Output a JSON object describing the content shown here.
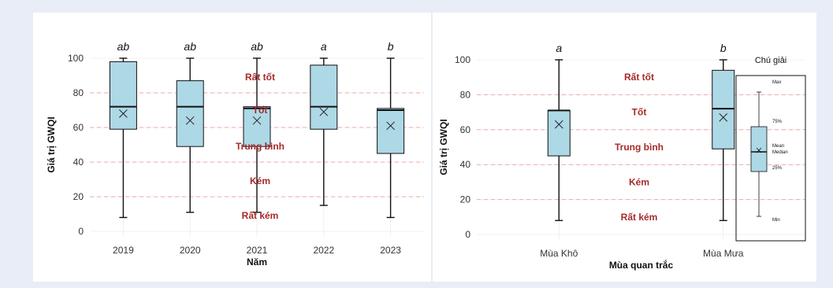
{
  "colors": {
    "box_fill": "#add8e6",
    "box_stroke": "#111111",
    "threshold_line": "#f4a6a6",
    "quality_label": "#a52a2a",
    "background": "#e9edf7",
    "panel": "#ffffff"
  },
  "chart_data": [
    {
      "type": "box",
      "xlabel": "Năm",
      "ylabel": "Giá trị GWQI",
      "ylim": [
        0,
        100
      ],
      "yticks": [
        0,
        20,
        40,
        60,
        80,
        100
      ],
      "grid": true,
      "thresholds": [
        20,
        40,
        60,
        80
      ],
      "quality_bands": [
        {
          "label": "Rất tốt",
          "value": 89
        },
        {
          "label": "Tốt",
          "value": 70
        },
        {
          "label": "Trung bình",
          "value": 49
        },
        {
          "label": "Kém",
          "value": 29
        },
        {
          "label": "Rất kém",
          "value": 9
        }
      ],
      "categories": [
        "2019",
        "2020",
        "2021",
        "2022",
        "2023"
      ],
      "boxes": [
        {
          "category": "2019",
          "min": 8,
          "q1": 59,
          "median": 72,
          "q3": 98,
          "max": 100,
          "mean": 68,
          "letter": "ab"
        },
        {
          "category": "2020",
          "min": 11,
          "q1": 49,
          "median": 72,
          "q3": 87,
          "max": 100,
          "mean": 64,
          "letter": "ab"
        },
        {
          "category": "2021",
          "min": 11,
          "q1": 49,
          "median": 71,
          "q3": 72,
          "max": 100,
          "mean": 64,
          "letter": "ab"
        },
        {
          "category": "2022",
          "min": 15,
          "q1": 59,
          "median": 72,
          "q3": 96,
          "max": 100,
          "mean": 69,
          "letter": "a"
        },
        {
          "category": "2023",
          "min": 8,
          "q1": 45,
          "median": 70,
          "q3": 71,
          "max": 100,
          "mean": 61,
          "letter": "b"
        }
      ]
    },
    {
      "type": "box",
      "xlabel": "Mùa quan trắc",
      "ylabel": "Giá trị GWQI",
      "ylim": [
        0,
        100
      ],
      "yticks": [
        0,
        20,
        40,
        60,
        80,
        100
      ],
      "grid": true,
      "thresholds": [
        20,
        40,
        60,
        80
      ],
      "quality_bands": [
        {
          "label": "Rất tốt",
          "value": 90
        },
        {
          "label": "Tốt",
          "value": 70
        },
        {
          "label": "Trung bình",
          "value": 50
        },
        {
          "label": "Kém",
          "value": 30
        },
        {
          "label": "Rất kém",
          "value": 10
        }
      ],
      "categories": [
        "Mùa Khô",
        "Mùa Mưa"
      ],
      "boxes": [
        {
          "category": "Mùa Khô",
          "min": 8,
          "q1": 45,
          "median": 71,
          "q3": 71,
          "max": 100,
          "mean": 63,
          "letter": "a"
        },
        {
          "category": "Mùa Mưa",
          "min": 8,
          "q1": 49,
          "median": 72,
          "q3": 94,
          "max": 100,
          "mean": 67,
          "letter": "b"
        }
      ],
      "legend": {
        "title": "Chú giải",
        "placement": "right",
        "labels": {
          "max": "Max",
          "q3": "75%",
          "mean": "Mean",
          "median": "Median",
          "q1": "25%",
          "min": "Min"
        }
      }
    }
  ]
}
